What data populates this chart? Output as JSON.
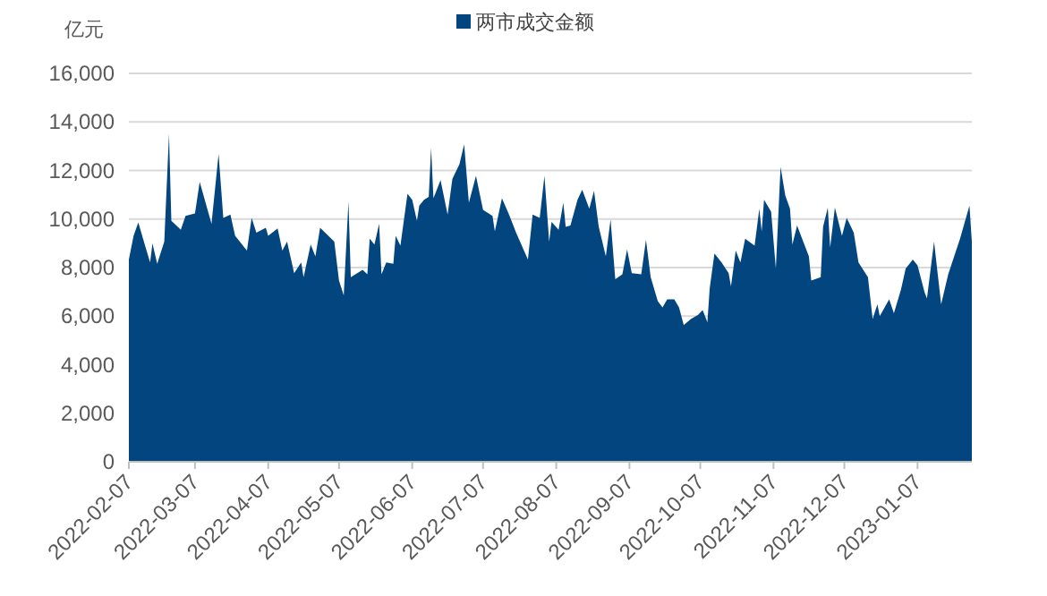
{
  "chart_data": {
    "type": "area",
    "ylabel": "亿元",
    "x": [
      "2022-02-07",
      "2022-02-09",
      "2022-02-11",
      "2022-02-13",
      "2022-02-16",
      "2022-02-17",
      "2022-02-19",
      "2022-02-22",
      "2022-02-24",
      "2022-02-25",
      "2022-03-01",
      "2022-03-03",
      "2022-03-07",
      "2022-03-09",
      "2022-03-14",
      "2022-03-17",
      "2022-03-19",
      "2022-03-22",
      "2022-03-24",
      "2022-03-29",
      "2022-03-31",
      "2022-04-02",
      "2022-04-06",
      "2022-04-07",
      "2022-04-11",
      "2022-04-13",
      "2022-04-15",
      "2022-04-18",
      "2022-04-21",
      "2022-04-22",
      "2022-04-25",
      "2022-04-27",
      "2022-04-29",
      "2022-05-05",
      "2022-05-07",
      "2022-05-09",
      "2022-05-11",
      "2022-05-12",
      "2022-05-17",
      "2022-05-19",
      "2022-05-20",
      "2022-05-22",
      "2022-05-24",
      "2022-05-25",
      "2022-05-27",
      "2022-05-30",
      "2022-05-31",
      "2022-06-02",
      "2022-06-05",
      "2022-06-07",
      "2022-06-09",
      "2022-06-10",
      "2022-06-12",
      "2022-06-14",
      "2022-06-15",
      "2022-06-16",
      "2022-06-19",
      "2022-06-22",
      "2022-06-24",
      "2022-06-27",
      "2022-06-29",
      "2022-07-01",
      "2022-07-04",
      "2022-07-07",
      "2022-07-11",
      "2022-07-12",
      "2022-07-15",
      "2022-07-18",
      "2022-07-21",
      "2022-07-26",
      "2022-07-28",
      "2022-07-31",
      "2022-08-02",
      "2022-08-04",
      "2022-08-05",
      "2022-08-08",
      "2022-08-10",
      "2022-08-11",
      "2022-08-13",
      "2022-08-16",
      "2022-08-18",
      "2022-08-21",
      "2022-08-23",
      "2022-08-25",
      "2022-08-28",
      "2022-08-30",
      "2022-09-01",
      "2022-09-04",
      "2022-09-06",
      "2022-09-08",
      "2022-09-12",
      "2022-09-14",
      "2022-09-16",
      "2022-09-19",
      "2022-09-21",
      "2022-09-23",
      "2022-09-26",
      "2022-09-28",
      "2022-09-30",
      "2022-10-03",
      "2022-10-06",
      "2022-10-08",
      "2022-10-10",
      "2022-10-11",
      "2022-10-13",
      "2022-10-16",
      "2022-10-19",
      "2022-10-20",
      "2022-10-22",
      "2022-10-24",
      "2022-10-26",
      "2022-10-30",
      "2022-11-01",
      "2022-11-02",
      "2022-11-03",
      "2022-11-06",
      "2022-11-08",
      "2022-11-10",
      "2022-11-12",
      "2022-11-14",
      "2022-11-15",
      "2022-11-17",
      "2022-11-22",
      "2022-11-23",
      "2022-11-27",
      "2022-11-28",
      "2022-11-30",
      "2022-12-01",
      "2022-12-03",
      "2022-12-06",
      "2022-12-08",
      "2022-12-11",
      "2022-12-13",
      "2022-12-17",
      "2022-12-19",
      "2022-12-21",
      "2022-12-22",
      "2022-12-26",
      "2022-12-28",
      "2022-12-31",
      "2023-01-02",
      "2023-01-05",
      "2023-01-07",
      "2023-01-10",
      "2023-01-11",
      "2023-01-14",
      "2023-01-17",
      "2023-01-20",
      "2023-01-25",
      "2023-01-29",
      "2023-01-30"
    ],
    "series": [
      {
        "name": "两市成交金额",
        "color": "#03467f",
        "values": [
          8330,
          9310,
          9860,
          9190,
          8210,
          9000,
          8160,
          9070,
          13500,
          9930,
          9560,
          10130,
          10230,
          11530,
          9810,
          12680,
          10050,
          10180,
          9310,
          8700,
          10050,
          9440,
          9640,
          9310,
          9610,
          8700,
          9070,
          7770,
          8210,
          7600,
          8950,
          8460,
          9640,
          9070,
          7470,
          6860,
          10720,
          7600,
          7910,
          7720,
          9190,
          8950,
          9810,
          7720,
          8210,
          8160,
          9310,
          8900,
          11040,
          10790,
          9930,
          10550,
          10790,
          10910,
          12930,
          10860,
          11600,
          10180,
          11650,
          12260,
          13080,
          10670,
          11780,
          10380,
          10130,
          9490,
          10860,
          10180,
          9440,
          8330,
          10180,
          10050,
          11780,
          9070,
          9880,
          9560,
          10670,
          9680,
          9730,
          10790,
          11210,
          10420,
          11160,
          9680,
          8460,
          9980,
          7520,
          7720,
          8750,
          7770,
          7720,
          9140,
          7600,
          6620,
          6360,
          6690,
          6690,
          6360,
          5630,
          5880,
          6050,
          6250,
          5750,
          7150,
          8580,
          8210,
          7770,
          7230,
          8700,
          8210,
          9190,
          8900,
          10420,
          9490,
          10790,
          10300,
          7960,
          12150,
          10970,
          10420,
          8950,
          9730,
          8460,
          7470,
          7600,
          9680,
          10470,
          8830,
          10470,
          9310,
          10050,
          9440,
          8210,
          7600,
          5880,
          6490,
          6000,
          6690,
          6120,
          7100,
          7960,
          8330,
          8090,
          6980,
          6730,
          9070,
          6490,
          7720,
          9190,
          10550,
          9070
        ]
      }
    ],
    "xlim": [
      "2022-02-07",
      "2023-01-30"
    ],
    "xticks": [
      "2022-02-07",
      "2022-03-07",
      "2022-04-07",
      "2022-05-07",
      "2022-06-07",
      "2022-07-07",
      "2022-08-07",
      "2022-09-07",
      "2022-10-07",
      "2022-11-07",
      "2022-12-07",
      "2023-01-07"
    ],
    "ylim": [
      0,
      16000
    ],
    "yticks": [
      0,
      {
        "value": 2000,
        "label": "2,000"
      },
      {
        "value": 4000,
        "label": "4,000"
      },
      {
        "value": 6000,
        "label": "6,000"
      },
      {
        "value": 8000,
        "label": "8,000"
      },
      {
        "value": 10000,
        "label": "10,000"
      },
      {
        "value": 12000,
        "label": "12,000"
      },
      {
        "value": 14000,
        "label": "14,000"
      },
      {
        "value": 16000,
        "label": "16,000"
      }
    ],
    "grid": "y",
    "legend": "top"
  }
}
